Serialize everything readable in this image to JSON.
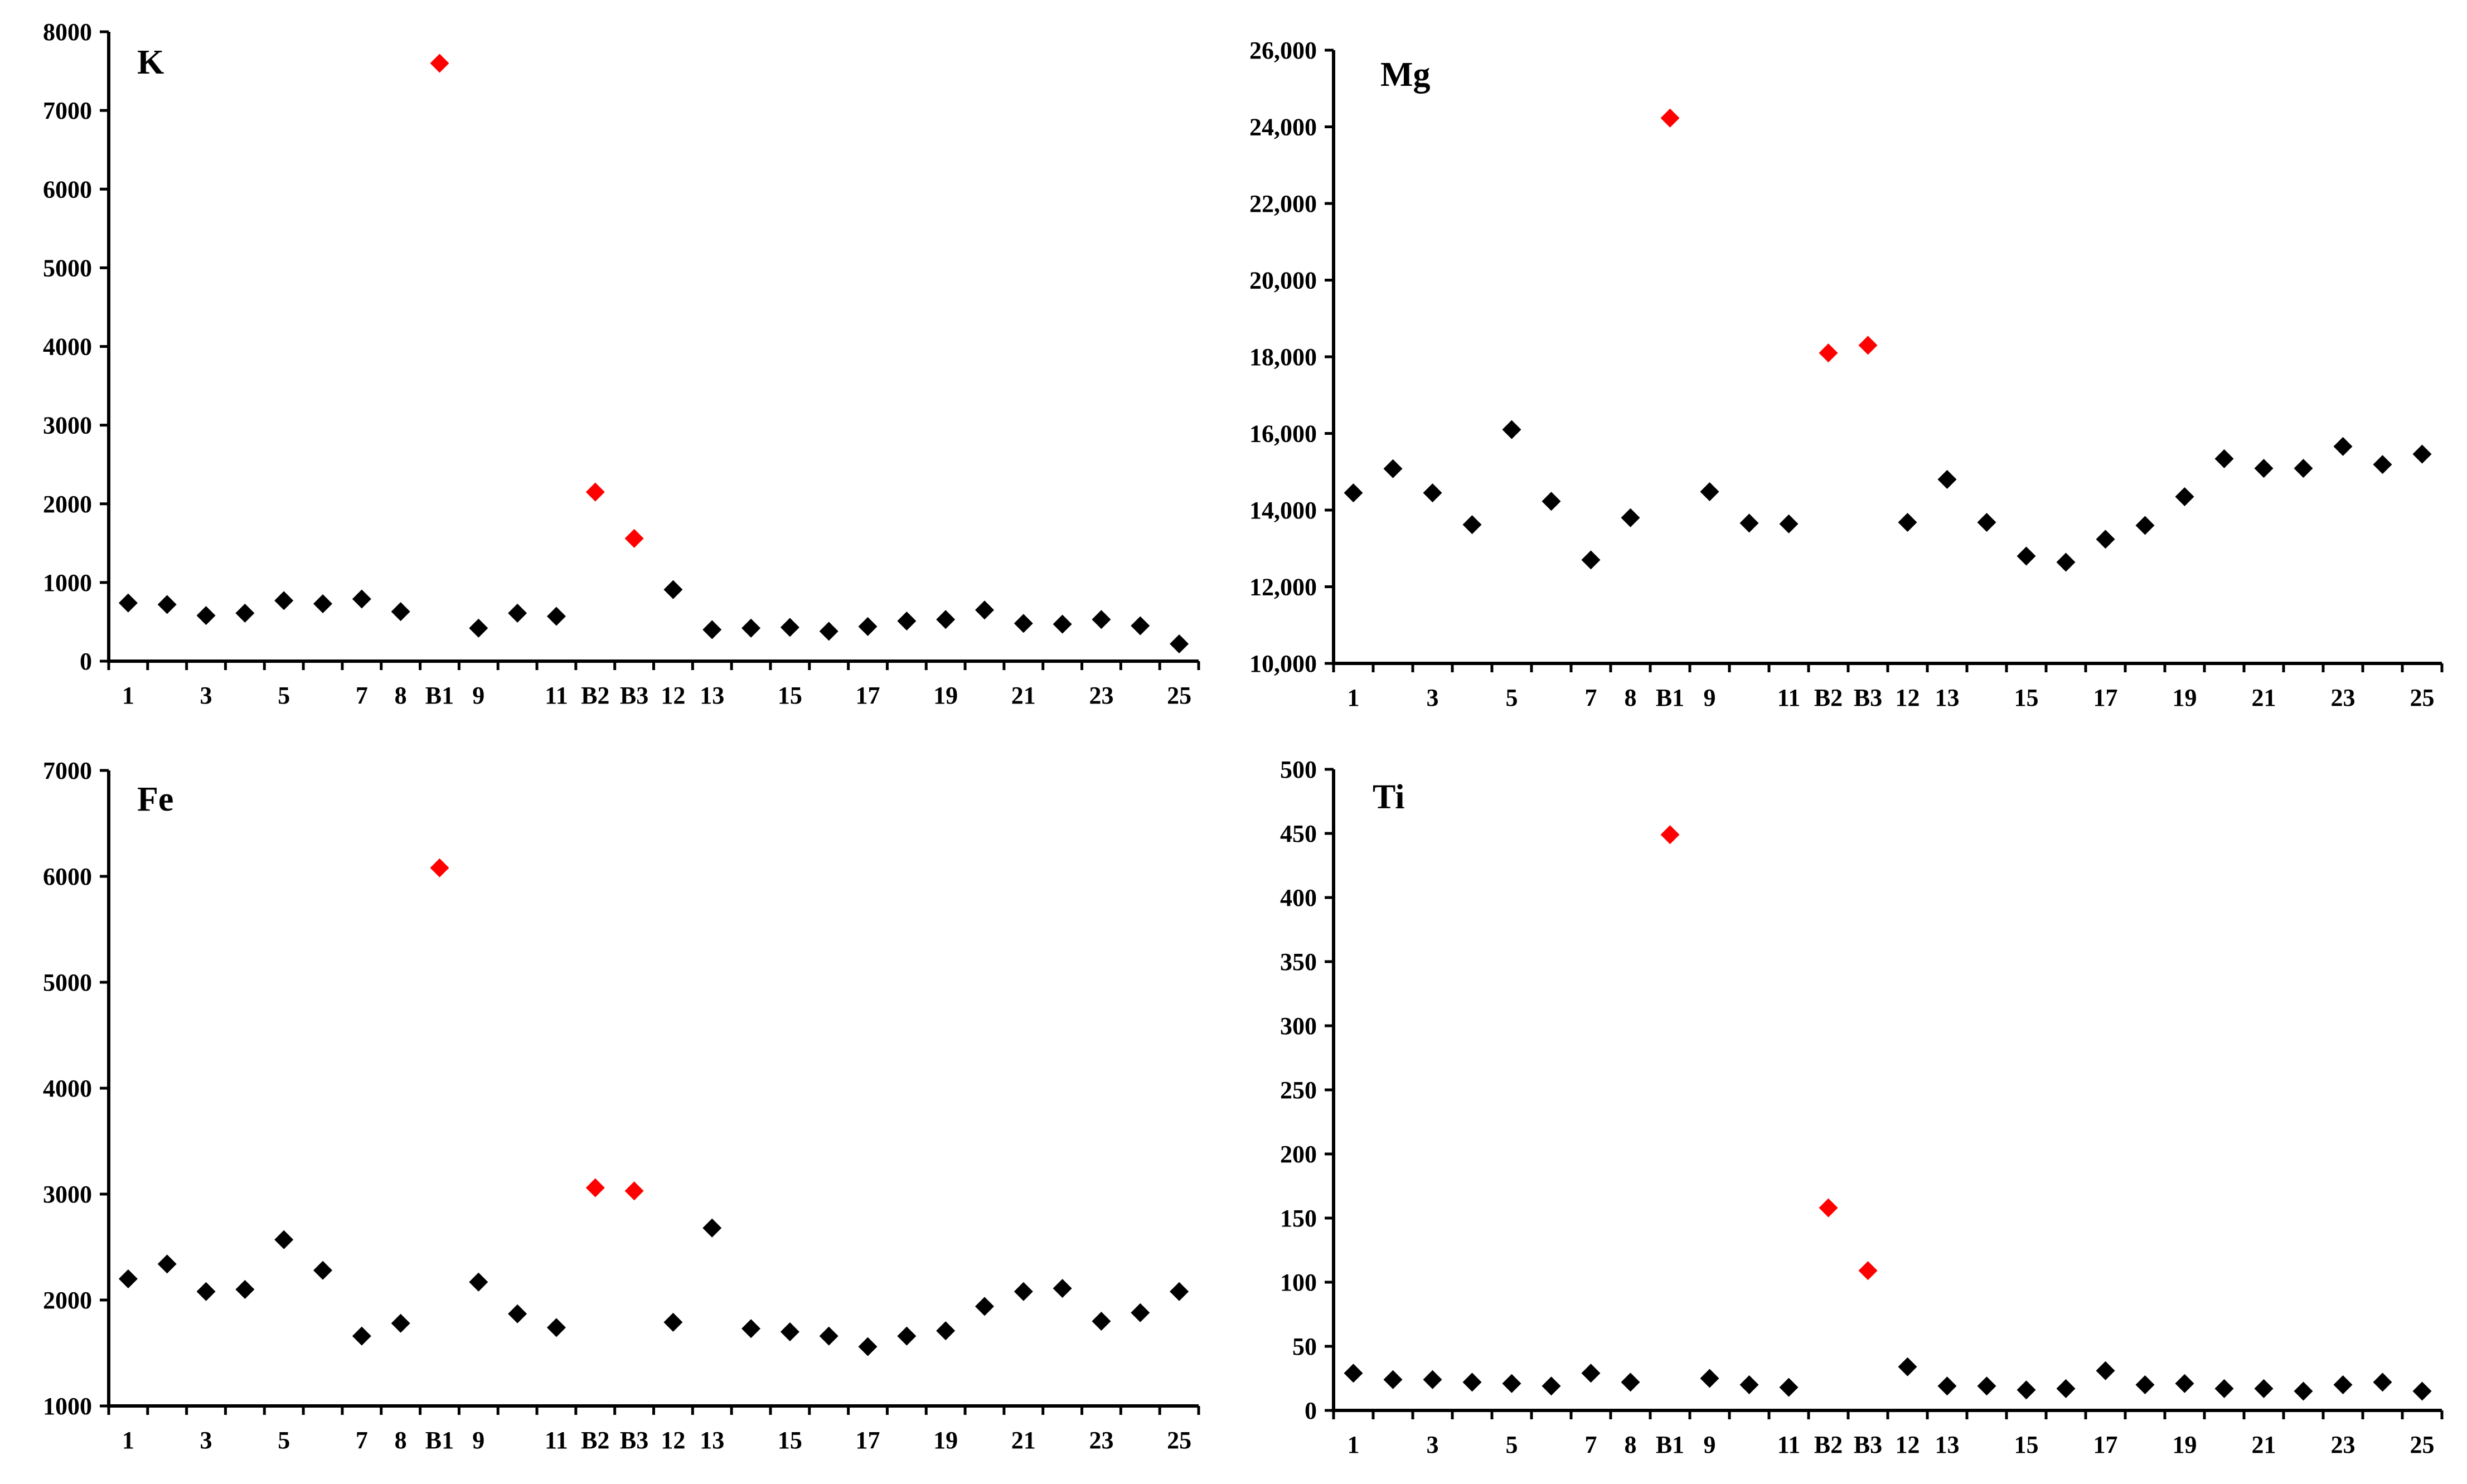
{
  "colors": {
    "normal": "#000000",
    "highlight": "#ff0000"
  },
  "chart_data": [
    {
      "type": "scatter",
      "title": "K",
      "xlabel": "",
      "ylabel": "",
      "ylim": [
        0,
        8000
      ],
      "yticks": [
        0,
        1000,
        2000,
        3000,
        4000,
        5000,
        6000,
        7000,
        8000
      ],
      "ytick_labels": [
        "0",
        "1000",
        "2000",
        "3000",
        "4000",
        "5000",
        "6000",
        "7000",
        "8000"
      ],
      "x_labels": [
        "1",
        "",
        "3",
        "",
        "5",
        "",
        "7",
        "8",
        "B1",
        "9",
        "",
        "11",
        "B2",
        "B3",
        "12",
        "13",
        "",
        "15",
        "",
        "17",
        "",
        "19",
        "",
        "21",
        "",
        "23",
        "",
        "25"
      ],
      "highlight": [
        false,
        false,
        false,
        false,
        false,
        false,
        false,
        false,
        true,
        false,
        false,
        false,
        true,
        true,
        false,
        false,
        false,
        false,
        false,
        false,
        false,
        false,
        false,
        false,
        false,
        false,
        false,
        false
      ],
      "values": [
        740,
        720,
        580,
        610,
        770,
        730,
        790,
        630,
        7600,
        420,
        610,
        570,
        2150,
        1560,
        910,
        400,
        420,
        430,
        380,
        440,
        510,
        530,
        650,
        480,
        470,
        530,
        450,
        220
      ]
    },
    {
      "type": "scatter",
      "title": "Mg",
      "xlabel": "",
      "ylabel": "",
      "ylim": [
        10000,
        26000
      ],
      "yticks": [
        10000,
        12000,
        14000,
        16000,
        18000,
        20000,
        22000,
        24000,
        26000
      ],
      "ytick_labels": [
        "10,000",
        "12,000",
        "14,000",
        "16,000",
        "18,000",
        "20,000",
        "22,000",
        "24,000",
        "26,000"
      ],
      "x_labels": [
        "1",
        "",
        "3",
        "",
        "5",
        "",
        "7",
        "8",
        "B1",
        "9",
        "",
        "11",
        "B2",
        "B3",
        "12",
        "13",
        "",
        "15",
        "",
        "17",
        "",
        "19",
        "",
        "21",
        "",
        "23",
        "",
        "25"
      ],
      "highlight": [
        false,
        false,
        false,
        false,
        false,
        false,
        false,
        false,
        true,
        false,
        false,
        false,
        true,
        true,
        false,
        false,
        false,
        false,
        false,
        false,
        false,
        false,
        false,
        false,
        false,
        false,
        false,
        false
      ],
      "values": [
        14450,
        15080,
        14450,
        13620,
        16100,
        14230,
        12700,
        13800,
        24230,
        14480,
        13660,
        13640,
        18100,
        18300,
        13680,
        14800,
        13680,
        12800,
        12640,
        13240,
        13600,
        14350,
        15340,
        15090,
        15090,
        15660,
        15190,
        15460
      ]
    },
    {
      "type": "scatter",
      "title": "Fe",
      "xlabel": "",
      "ylabel": "",
      "ylim": [
        1000,
        7000
      ],
      "yticks": [
        1000,
        2000,
        3000,
        4000,
        5000,
        6000,
        7000
      ],
      "ytick_labels": [
        "1000",
        "2000",
        "3000",
        "4000",
        "5000",
        "6000",
        "7000"
      ],
      "x_labels": [
        "1",
        "",
        "3",
        "",
        "5",
        "",
        "7",
        "8",
        "B1",
        "9",
        "",
        "11",
        "B2",
        "B3",
        "12",
        "13",
        "",
        "15",
        "",
        "17",
        "",
        "19",
        "",
        "21",
        "",
        "23",
        "",
        "25"
      ],
      "highlight": [
        false,
        false,
        false,
        false,
        false,
        false,
        false,
        false,
        true,
        false,
        false,
        false,
        true,
        true,
        false,
        false,
        false,
        false,
        false,
        false,
        false,
        false,
        false,
        false,
        false,
        false,
        false,
        false
      ],
      "values": [
        2200,
        2340,
        2080,
        2100,
        2570,
        2280,
        1660,
        1780,
        6080,
        2170,
        1870,
        1740,
        3060,
        3030,
        1790,
        2680,
        1730,
        1700,
        1660,
        1560,
        1660,
        1710,
        1940,
        2080,
        2110,
        1800,
        1880,
        2080
      ]
    },
    {
      "type": "scatter",
      "title": "Ti",
      "xlabel": "",
      "ylabel": "",
      "ylim": [
        0,
        500
      ],
      "yticks": [
        0,
        50,
        100,
        150,
        200,
        250,
        300,
        350,
        400,
        450,
        500
      ],
      "ytick_labels": [
        "0",
        "50",
        "100",
        "150",
        "200",
        "250",
        "300",
        "350",
        "400",
        "450",
        "500"
      ],
      "x_labels": [
        "1",
        "",
        "3",
        "",
        "5",
        "",
        "7",
        "8",
        "B1",
        "9",
        "",
        "11",
        "B2",
        "B3",
        "12",
        "13",
        "",
        "15",
        "",
        "17",
        "",
        "19",
        "",
        "21",
        "",
        "23",
        "",
        "25"
      ],
      "highlight": [
        false,
        false,
        false,
        false,
        false,
        false,
        false,
        false,
        true,
        false,
        false,
        false,
        true,
        true,
        false,
        false,
        false,
        false,
        false,
        false,
        false,
        false,
        false,
        false,
        false,
        false,
        false,
        false
      ],
      "values": [
        29,
        24,
        24,
        22,
        21,
        19,
        29,
        22,
        449,
        25,
        20,
        18,
        158,
        109,
        34,
        19,
        19,
        16,
        17,
        31,
        20,
        21,
        17,
        17,
        15,
        20,
        22,
        15
      ]
    }
  ]
}
